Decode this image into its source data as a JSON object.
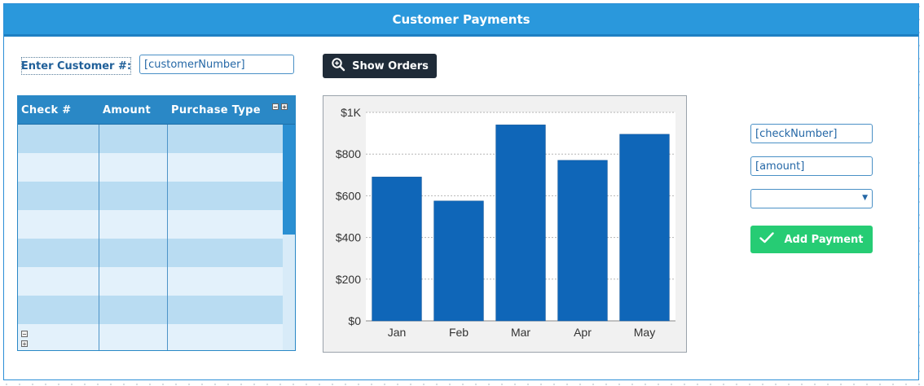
{
  "panel": {
    "title": "Customer Payments"
  },
  "customer": {
    "label": "Enter Customer #:",
    "input_placeholder": "[customerNumber]"
  },
  "show_orders": {
    "label": "Show Orders",
    "icon": "magnifier-icon"
  },
  "grid": {
    "columns": [
      "Check #",
      "Amount",
      "Purchase Type"
    ],
    "rows": [
      [
        "",
        "",
        ""
      ],
      [
        "",
        "",
        ""
      ],
      [
        "",
        "",
        ""
      ],
      [
        "",
        "",
        ""
      ],
      [
        "",
        "",
        ""
      ],
      [
        "",
        "",
        ""
      ],
      [
        "",
        "",
        ""
      ],
      [
        "",
        "",
        ""
      ]
    ],
    "colors": {
      "header": "#2a88c6",
      "row_odd": "#b9dcf2",
      "row_even": "#e3f1fb"
    }
  },
  "chart_data": {
    "type": "bar",
    "categories": [
      "Jan",
      "Feb",
      "Mar",
      "Apr",
      "May"
    ],
    "values": [
      690,
      575,
      940,
      770,
      895
    ],
    "title": "",
    "xlabel": "",
    "ylabel": "",
    "ylim": [
      0,
      1000
    ],
    "yticks": [
      "$0",
      "$200",
      "$400",
      "$600",
      "$800",
      "$1K"
    ],
    "grid": true,
    "bar_color": "#0f66b8"
  },
  "payment": {
    "check_placeholder": "[checkNumber]",
    "amount_placeholder": "[amount]",
    "type_value": "",
    "add_label": "Add Payment",
    "add_icon": "checkmark-icon"
  }
}
